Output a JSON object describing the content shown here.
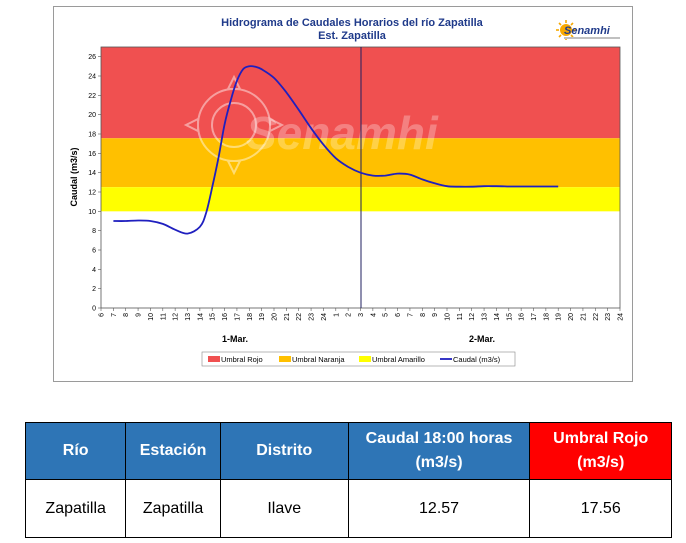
{
  "chart_data": {
    "type": "line",
    "title": "Hidrograma de Caudales Horarios del río Zapatilla",
    "subtitle": "Est. Zapatilla",
    "ylabel": "Caudal  (m3/s)",
    "xlabel": "",
    "ylim": [
      0,
      27
    ],
    "y_ticks": [
      "0",
      "2",
      "4",
      "6",
      "8",
      "10",
      "12",
      "14",
      "16",
      "18",
      "20",
      "22",
      "24",
      "26"
    ],
    "x_ticks": [
      "6",
      "7",
      "8",
      "9",
      "10",
      "11",
      "12",
      "13",
      "14",
      "15",
      "16",
      "17",
      "18",
      "19",
      "20",
      "21",
      "22",
      "23",
      "24",
      "1",
      "2",
      "3",
      "4",
      "5",
      "6",
      "7",
      "8",
      "9",
      "10",
      "11",
      "12",
      "13",
      "14",
      "15",
      "16",
      "17",
      "18",
      "19",
      "20",
      "21",
      "22",
      "23",
      "24"
    ],
    "day_labels": [
      "1-Mar.",
      "2-Mar."
    ],
    "grid": false,
    "legend_position": "bottom",
    "thresholds": [
      {
        "name": "Umbral Rojo",
        "from": 17.56,
        "to": 27,
        "color": "#f05050"
      },
      {
        "name": "Umbral Naranja",
        "from": 12.5,
        "to": 17.56,
        "color": "#ffc000"
      },
      {
        "name": "Umbral Amarillo",
        "from": 10,
        "to": 12.5,
        "color": "#ffff00"
      }
    ],
    "series": [
      {
        "name": "Caudal (m3/s)",
        "color": "#1f1fbf",
        "x": [
          1,
          2,
          3,
          4,
          5,
          6,
          7,
          8,
          8.5,
          9,
          9.5,
          10,
          10.5,
          11,
          11.5,
          12,
          12.5,
          13,
          14,
          15,
          16,
          17,
          18,
          19,
          20,
          21,
          22,
          23,
          24,
          25,
          26,
          27,
          28,
          29,
          30,
          31,
          32,
          33,
          34,
          35,
          36,
          37
        ],
        "values": [
          9.0,
          9.0,
          9.05,
          9.0,
          8.7,
          8.1,
          7.7,
          8.4,
          9.8,
          12.5,
          15.5,
          19.0,
          21.5,
          23.5,
          24.7,
          25.0,
          24.95,
          24.7,
          23.8,
          22.3,
          20.5,
          18.6,
          16.9,
          15.5,
          14.6,
          14.0,
          13.7,
          13.7,
          13.9,
          13.8,
          13.3,
          12.9,
          12.6,
          12.55,
          12.55,
          12.6,
          12.6,
          12.57,
          12.57,
          12.57,
          12.57,
          12.57
        ]
      }
    ],
    "watermark": "Senamhi"
  },
  "logo": {
    "text": "Senamhi"
  },
  "table": {
    "headers": [
      "Río",
      "Estación",
      "Distrito",
      "Caudal  18:00 horas (m3/s)",
      "Umbral Rojo (m3/s)"
    ],
    "rows": [
      [
        "Zapatilla",
        "Zapatilla",
        "Ilave",
        "12.57",
        "17.56"
      ]
    ]
  },
  "colors": {
    "header_blue": "#2e75b6",
    "header_red": "#ff0000",
    "series": "#1f1fbf"
  }
}
